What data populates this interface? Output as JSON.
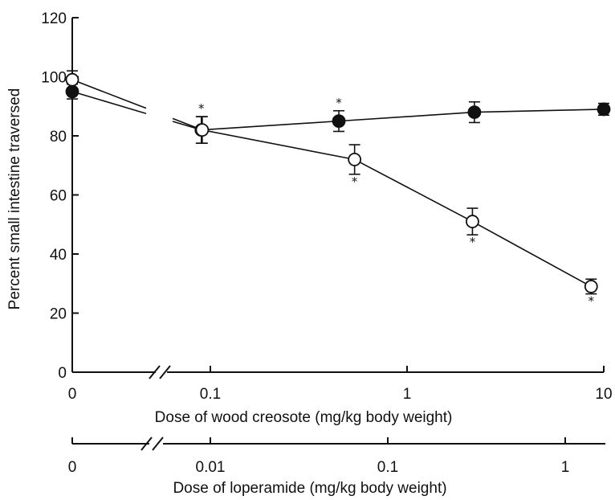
{
  "chart_data": {
    "type": "scatter",
    "y_axis": {
      "label": "Percent small intestine traversed",
      "ylim": [
        0,
        120
      ],
      "ticks": [
        0,
        20,
        40,
        60,
        80,
        100,
        120
      ]
    },
    "x_axis_primary": {
      "label": "Dose of wood creosote (mg/kg body weight)",
      "scale": "log-with-break",
      "tick_values": [
        0,
        0.1,
        1,
        10
      ],
      "tick_labels": [
        "0",
        "0.1",
        "1",
        "10"
      ]
    },
    "x_axis_secondary": {
      "label": "Dose of loperamide (mg/kg body weight)",
      "scale": "log-with-break",
      "tick_values": [
        0,
        0.01,
        0.1,
        1
      ],
      "tick_labels": [
        "0",
        "0.01",
        "0.1",
        "1"
      ]
    },
    "series": [
      {
        "marker": "filled-circle",
        "axis": "wood creosote",
        "points": [
          {
            "x": 0,
            "y": 95,
            "err": 2.5,
            "star": false
          },
          {
            "x": 0.09,
            "y": 82,
            "err": 4.5,
            "star": true
          },
          {
            "x": 0.45,
            "y": 85,
            "err": 3.5,
            "star": true
          },
          {
            "x": 2.2,
            "y": 88,
            "err": 3.5,
            "star": false
          },
          {
            "x": 10,
            "y": 89,
            "err": 2,
            "star": false
          }
        ]
      },
      {
        "marker": "open-circle",
        "axis": "loperamide",
        "points": [
          {
            "x": 0,
            "y": 99,
            "err": 3,
            "star": false
          },
          {
            "x": 0.009,
            "y": 82,
            "err": 4.5,
            "star": false
          },
          {
            "x": 0.065,
            "y": 72,
            "err": 5,
            "star": true
          },
          {
            "x": 0.3,
            "y": 51,
            "err": 4.5,
            "star": true
          },
          {
            "x": 1.4,
            "y": 29,
            "err": 2.5,
            "star": true
          }
        ]
      }
    ],
    "significance_mark": "*"
  }
}
